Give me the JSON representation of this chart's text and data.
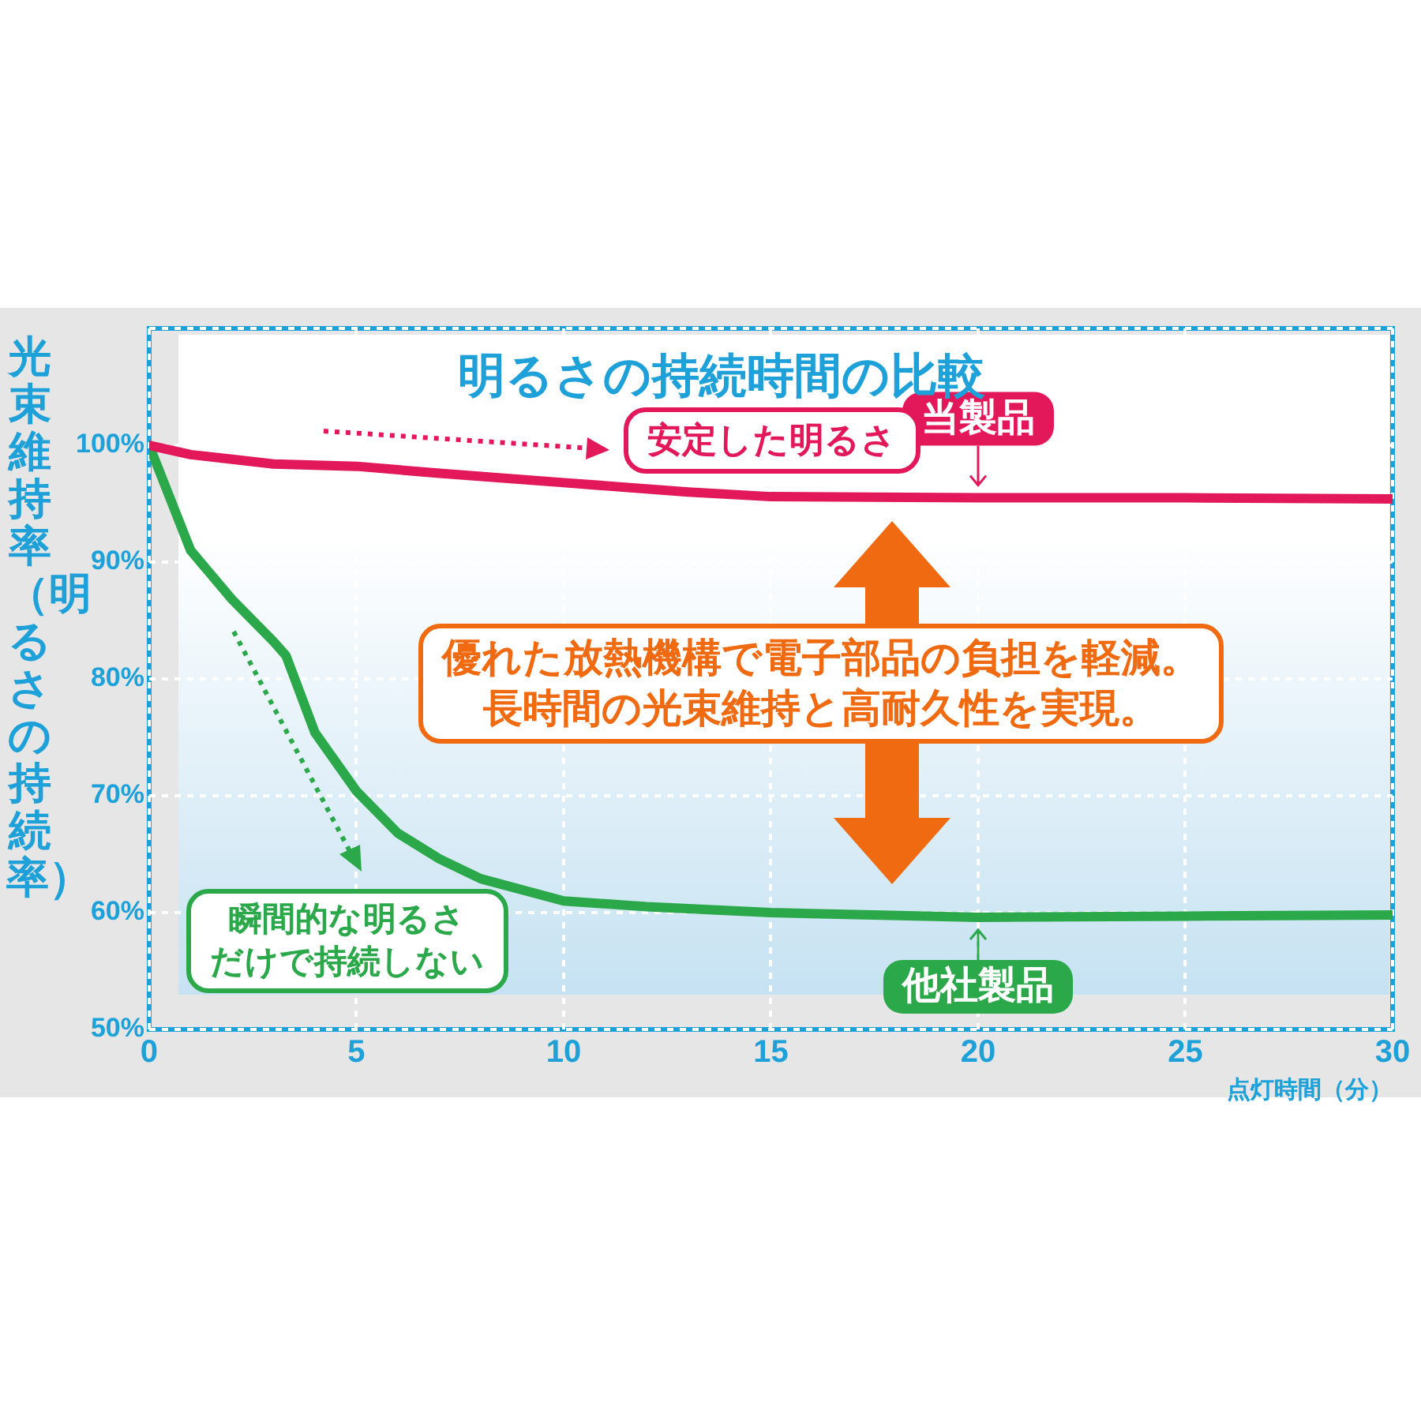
{
  "chart_data": {
    "type": "line",
    "title": "明るさの持続時間の比較",
    "xlabel": "点灯時間（分）",
    "ylabel": "光束維持率（明るさの持続率）",
    "xlim": [
      0,
      30
    ],
    "xticks": [
      0,
      5,
      10,
      15,
      20,
      25,
      30
    ],
    "ylim": [
      50,
      110
    ],
    "yticks": [
      {
        "value": 50,
        "label": "50%"
      },
      {
        "value": 60,
        "label": "60%"
      },
      {
        "value": 70,
        "label": "70%"
      },
      {
        "value": 80,
        "label": "80%"
      },
      {
        "value": 90,
        "label": "90%"
      },
      {
        "value": 100,
        "label": "100%"
      },
      {
        "value": 110,
        "label": null
      }
    ],
    "grid": true,
    "legend": "right",
    "marker": "none",
    "line_style": "solid",
    "series": [
      {
        "name": "当製品",
        "color": "#e2185b",
        "x": [
          0,
          1,
          2,
          3,
          5,
          7,
          10,
          13,
          15,
          20,
          25,
          30
        ],
        "values": [
          100,
          99.2,
          98.8,
          98.4,
          98.2,
          97.6,
          96.8,
          96,
          95.6,
          95.5,
          95.5,
          95.4
        ]
      },
      {
        "name": "他社製品",
        "color": "#2aa84a",
        "x": [
          0,
          1,
          2,
          3,
          3.3,
          4,
          5,
          6,
          7,
          8,
          10,
          12,
          15,
          20,
          25,
          30
        ],
        "values": [
          100,
          91,
          86.8,
          83.2,
          82,
          75.4,
          70.4,
          66.8,
          64.6,
          62.9,
          61,
          60.5,
          60,
          59.6,
          59.7,
          59.8
        ]
      }
    ],
    "annotations": [
      "安定した明るさ",
      "瞬間的な明るさだけで持続しない",
      "優れた放熱機構で電子部品の負担を軽減。長時間の光束維持と高耐久性を実現。"
    ]
  }
}
